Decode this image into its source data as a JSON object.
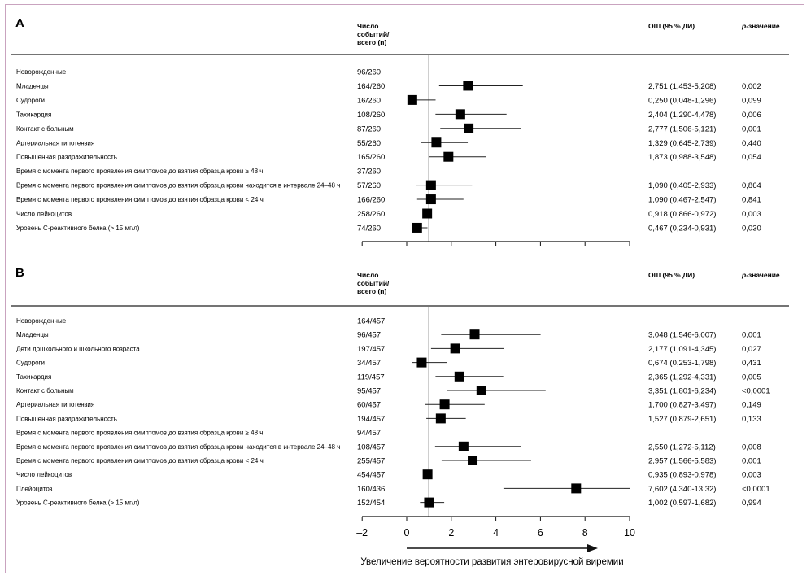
{
  "chart_data": [
    {
      "type": "forest",
      "panel_label": "A",
      "headers": {
        "count": [
          "Число",
          "событий/",
          "всего (n)"
        ],
        "or": "ОШ (95 % ДИ)",
        "p": "p-значение"
      },
      "rows": [
        {
          "label": "Новорожденные",
          "count": "96/260",
          "or": null,
          "lo": null,
          "hi": null,
          "or_text": "",
          "p_text": ""
        },
        {
          "label": "Младенцы",
          "count": "164/260",
          "or": 2.751,
          "lo": 1.453,
          "hi": 5.208,
          "or_text": "2,751 (1,453-5,208)",
          "p_text": "0,002"
        },
        {
          "label": "Судороги",
          "count": "16/260",
          "or": 0.25,
          "lo": 0.048,
          "hi": 1.296,
          "or_text": "0,250 (0,048-1,296)",
          "p_text": "0,099"
        },
        {
          "label": "Тахикардия",
          "count": "108/260",
          "or": 2.404,
          "lo": 1.29,
          "hi": 4.478,
          "or_text": "2,404 (1,290-4,478)",
          "p_text": "0,006"
        },
        {
          "label": "Контакт с больным",
          "count": "87/260",
          "or": 2.777,
          "lo": 1.506,
          "hi": 5.121,
          "or_text": "2,777 (1,506-5,121)",
          "p_text": "0,001"
        },
        {
          "label": "Артериальная гипотензия",
          "count": "55/260",
          "or": 1.329,
          "lo": 0.645,
          "hi": 2.739,
          "or_text": "1,329 (0,645-2,739)",
          "p_text": "0,440"
        },
        {
          "label": "Повышенная раздражительность",
          "count": "165/260",
          "or": 1.873,
          "lo": 0.988,
          "hi": 3.548,
          "or_text": "1,873 (0,988-3,548)",
          "p_text": "0,054"
        },
        {
          "label": "Время с момента первого проявления симптомов до взятия образца крови ≥ 48 ч",
          "count": "37/260",
          "or": null,
          "lo": null,
          "hi": null,
          "or_text": "",
          "p_text": ""
        },
        {
          "label": "Время с момента первого проявления симптомов до взятия образца крови находится в интервале 24–48 ч",
          "count": "57/260",
          "or": 1.09,
          "lo": 0.405,
          "hi": 2.933,
          "or_text": "1,090 (0,405-2,933)",
          "p_text": "0,864"
        },
        {
          "label": "Время с момента первого проявления симптомов до взятия образца крови < 24 ч",
          "count": "166/260",
          "or": 1.09,
          "lo": 0.467,
          "hi": 2.547,
          "or_text": "1,090 (0,467-2,547)",
          "p_text": "0,841"
        },
        {
          "label": "Число лейкоцитов",
          "count": "258/260",
          "or": 0.918,
          "lo": 0.866,
          "hi": 0.972,
          "or_text": "0,918 (0,866-0,972)",
          "p_text": "0,003"
        },
        {
          "label": "Уровень С-реактивного белка (> 15 мг/л)",
          "count": "74/260",
          "or": 0.467,
          "lo": 0.234,
          "hi": 0.931,
          "or_text": "0,467 (0,234-0,931)",
          "p_text": "0,030"
        }
      ],
      "xlim": [
        -2,
        10
      ],
      "ticks": [
        -2,
        0,
        2,
        4,
        6,
        8,
        10
      ],
      "reference_line": 1
    },
    {
      "type": "forest",
      "panel_label": "B",
      "headers": {
        "count": [
          "Число",
          "событий/",
          "всего (n)"
        ],
        "or": "ОШ (95 % ДИ)",
        "p": "p-значение"
      },
      "rows": [
        {
          "label": "Новорожденные",
          "count": "164/457",
          "or": null,
          "lo": null,
          "hi": null,
          "or_text": "",
          "p_text": ""
        },
        {
          "label": "Младенцы",
          "count": "96/457",
          "or": 3.048,
          "lo": 1.546,
          "hi": 6.007,
          "or_text": "3,048 (1,546-6,007)",
          "p_text": "0,001"
        },
        {
          "label": "Дети дошкольного и школьного возраста",
          "count": "197/457",
          "or": 2.177,
          "lo": 1.091,
          "hi": 4.345,
          "or_text": "2,177 (1,091-4,345)",
          "p_text": "0,027"
        },
        {
          "label": "Судороги",
          "count": "34/457",
          "or": 0.674,
          "lo": 0.253,
          "hi": 1.798,
          "or_text": "0,674 (0,253-1,798)",
          "p_text": "0,431"
        },
        {
          "label": "Тахикардия",
          "count": "119/457",
          "or": 2.365,
          "lo": 1.292,
          "hi": 4.331,
          "or_text": "2,365 (1,292-4,331)",
          "p_text": "0,005"
        },
        {
          "label": "Контакт с больным",
          "count": "95/457",
          "or": 3.351,
          "lo": 1.801,
          "hi": 6.234,
          "or_text": "3,351 (1,801-6,234)",
          "p_text": "<0,0001"
        },
        {
          "label": "Артериальная гипотензия",
          "count": "60/457",
          "or": 1.7,
          "lo": 0.827,
          "hi": 3.497,
          "or_text": "1,700 (0,827-3,497)",
          "p_text": "0,149"
        },
        {
          "label": "Повышенная раздражительность",
          "count": "194/457",
          "or": 1.527,
          "lo": 0.879,
          "hi": 2.651,
          "or_text": "1,527 (0,879-2,651)",
          "p_text": "0,133"
        },
        {
          "label": "Время с момента первого проявления симптомов до взятия образца крови ≥ 48 ч",
          "count": "94/457",
          "or": null,
          "lo": null,
          "hi": null,
          "or_text": "",
          "p_text": ""
        },
        {
          "label": "Время с момента первого проявления симптомов до взятия образца крови находится в интервале 24–48 ч",
          "count": "108/457",
          "or": 2.55,
          "lo": 1.272,
          "hi": 5.112,
          "or_text": "2,550 (1,272-5,112)",
          "p_text": "0,008"
        },
        {
          "label": "Время с момента первого проявления симптомов до взятия образца крови < 24 ч",
          "count": "255/457",
          "or": 2.957,
          "lo": 1.566,
          "hi": 5.583,
          "or_text": "2,957 (1,566-5,583)",
          "p_text": "0,001"
        },
        {
          "label": "Число лейкоцитов",
          "count": "454/457",
          "or": 0.935,
          "lo": 0.893,
          "hi": 0.978,
          "or_text": "0,935 (0,893-0,978)",
          "p_text": "0,003"
        },
        {
          "label": "Плейоцитоз",
          "count": "160/436",
          "or": 7.602,
          "lo": 4.34,
          "hi": 13.32,
          "or_text": "7,602 (4,340-13,32)",
          "p_text": "<0,0001"
        },
        {
          "label": "Уровень С-реактивного белка (> 15 мг/л)",
          "count": "152/454",
          "or": 1.002,
          "lo": 0.597,
          "hi": 1.682,
          "or_text": "1,002 (0,597-1,682)",
          "p_text": "0,994"
        }
      ],
      "xlim": [
        -2,
        10
      ],
      "ticks": [
        -2,
        0,
        2,
        4,
        6,
        8,
        10
      ],
      "tick_labels": [
        "–2",
        "0",
        "2",
        "4",
        "6",
        "8",
        "10"
      ],
      "reference_line": 1,
      "xlabel": "Увеличение вероятности развития энтеровирусной виремии"
    }
  ]
}
